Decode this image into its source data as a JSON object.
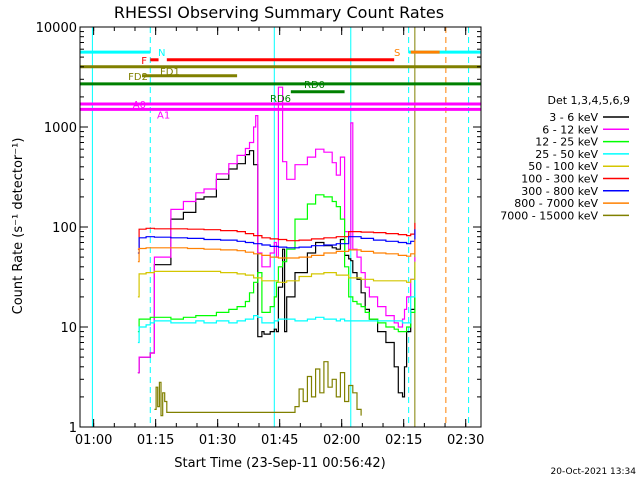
{
  "chart_data": {
    "type": "line",
    "title": "RHESSI Observing Summary Count Rates",
    "xlabel": "Start Time (23-Sep-11 00:56:42)",
    "ylabel": "Count Rate (s⁻¹ detector⁻¹)",
    "yscale": "log",
    "xunit": "minutes since 00:56:42",
    "xlim": [
      0,
      97
    ],
    "ylim": [
      1,
      10000
    ],
    "x_ticks": [
      {
        "at": 3.3,
        "label": "01:00"
      },
      {
        "at": 18.3,
        "label": "01:15"
      },
      {
        "at": 33.3,
        "label": "01:30"
      },
      {
        "at": 48.3,
        "label": "01:45"
      },
      {
        "at": 63.3,
        "label": "02:00"
      },
      {
        "at": 78.3,
        "label": "02:15"
      },
      {
        "at": 93.3,
        "label": "02:30"
      }
    ],
    "y_ticks": [
      {
        "at": 1,
        "label": "1"
      },
      {
        "at": 10,
        "label": "10"
      },
      {
        "at": 100,
        "label": "100"
      },
      {
        "at": 1000,
        "label": "1000"
      },
      {
        "at": 10000,
        "label": "10000"
      }
    ],
    "legend": {
      "title": "Det 1,3,4,5,6,9",
      "placement": "right"
    },
    "series": [
      {
        "name": "3 - 6 keV",
        "color": "#000000",
        "x": [
          14,
          14.3,
          16,
          17,
          18,
          22,
          25,
          28,
          30,
          33,
          36,
          38,
          40,
          41,
          42,
          43,
          44,
          44.5,
          45,
          46,
          47,
          47.5,
          48,
          49,
          49.5,
          50,
          52,
          55,
          57,
          59,
          61,
          62,
          63,
          64,
          65,
          65.5,
          66,
          67,
          68,
          69,
          70,
          72,
          74,
          76,
          77,
          78,
          78.5,
          79,
          80,
          81
        ],
        "y": [
          3.5,
          5,
          5,
          5.5,
          42,
          120,
          140,
          190,
          200,
          300,
          380,
          430,
          530,
          580,
          420,
          8,
          9,
          8.5,
          8.5,
          9,
          9.5,
          9,
          25,
          60,
          9,
          20,
          35,
          55,
          70,
          65,
          62,
          60,
          75,
          52,
          48,
          46,
          35,
          30,
          22,
          15,
          12,
          9,
          7,
          4,
          2.2,
          2,
          4,
          9,
          15,
          30
        ]
      },
      {
        "name": "6 - 12 keV",
        "color": "#ff00ff",
        "x": [
          14,
          14.3,
          16,
          17,
          18,
          22,
          25,
          28,
          30,
          33,
          36,
          38,
          40,
          41,
          42,
          42.5,
          43,
          44,
          46,
          47,
          47.5,
          48,
          49,
          50,
          52,
          55,
          57,
          59,
          61,
          62,
          63,
          64,
          65,
          65.5,
          66,
          67,
          68,
          69,
          70,
          72,
          74,
          76,
          77,
          78,
          78.5,
          79,
          80,
          81
        ],
        "y": [
          3.5,
          5,
          5,
          5.5,
          50,
          150,
          180,
          220,
          240,
          340,
          430,
          520,
          610,
          700,
          1000,
          1300,
          55,
          40,
          55,
          70,
          50,
          2500,
          450,
          300,
          420,
          500,
          600,
          560,
          440,
          330,
          500,
          90,
          60,
          1100,
          60,
          50,
          35,
          25,
          20,
          16,
          13,
          11,
          10,
          12,
          15,
          20,
          30,
          50
        ]
      },
      {
        "name": "12 - 25 keV",
        "color": "#00ff00",
        "x": [
          14,
          14.3,
          16,
          17,
          18,
          22,
          25,
          28,
          30,
          33,
          36,
          38,
          40,
          41,
          42,
          43,
          44,
          46,
          47,
          47.5,
          48,
          49,
          50,
          52,
          55,
          57,
          59,
          61,
          62,
          63,
          64,
          65,
          66,
          67,
          68,
          69,
          70,
          72,
          74,
          76,
          77,
          78,
          78.5,
          79,
          80,
          81
        ],
        "y": [
          9,
          12,
          12,
          12.5,
          12.5,
          12,
          12.5,
          13,
          13,
          14,
          15,
          16,
          18,
          22,
          28,
          35,
          14,
          16,
          20,
          28,
          40,
          45,
          60,
          120,
          170,
          210,
          200,
          180,
          160,
          120,
          40,
          20,
          18,
          17,
          16,
          14,
          12,
          11,
          10,
          9.5,
          9,
          9,
          9,
          10,
          14,
          40
        ]
      },
      {
        "name": "25 - 50 keV",
        "color": "#00ffff",
        "x": [
          14,
          14.3,
          16,
          17,
          18,
          22,
          25,
          28,
          30,
          33,
          36,
          38,
          40,
          41,
          42,
          43,
          44,
          46,
          47,
          48,
          49,
          50,
          52,
          55,
          57,
          59,
          61,
          62,
          63,
          64,
          66,
          68,
          70,
          72,
          74,
          76,
          78,
          79,
          80,
          81
        ],
        "y": [
          7,
          10,
          10.5,
          11,
          11.5,
          11,
          11,
          11.5,
          11,
          11.5,
          11,
          11.5,
          12,
          12,
          13,
          12.5,
          11,
          11,
          11.5,
          12,
          12,
          12,
          11.5,
          12,
          12.5,
          12,
          12,
          11.5,
          12,
          11.5,
          11.5,
          11.5,
          11.5,
          11.5,
          11.5,
          11.5,
          11,
          11,
          20,
          45
        ]
      },
      {
        "name": "50 - 100 keV",
        "color": "#d4c600",
        "x": [
          14,
          14.3,
          16,
          18,
          22,
          26,
          30,
          34,
          38,
          40,
          42,
          44,
          46,
          48,
          50,
          53,
          56,
          59,
          62,
          65,
          68,
          71,
          74,
          77,
          79,
          80,
          81
        ],
        "y": [
          20,
          34,
          35,
          36,
          36,
          36,
          36,
          35,
          34,
          33,
          31,
          29,
          29,
          28,
          29,
          32,
          34,
          35,
          33,
          31,
          30,
          29,
          29,
          29,
          28,
          30,
          45
        ]
      },
      {
        "name": "100 - 300 keV",
        "color": "#ff0000",
        "x": [
          14,
          14.3,
          16,
          18,
          22,
          26,
          30,
          34,
          38,
          40,
          42,
          44,
          46,
          48,
          50,
          53,
          56,
          59,
          62,
          65,
          68,
          71,
          74,
          77,
          79,
          80,
          81
        ],
        "y": [
          60,
          95,
          97,
          96,
          96,
          95,
          94,
          92,
          90,
          86,
          82,
          78,
          76,
          75,
          73,
          74,
          76,
          78,
          80,
          90,
          89,
          88,
          86,
          84,
          82,
          85,
          110
        ]
      },
      {
        "name": "300 - 800 keV",
        "color": "#0000ff",
        "x": [
          14,
          14.3,
          16,
          18,
          22,
          26,
          30,
          34,
          38,
          40,
          42,
          44,
          46,
          48,
          50,
          53,
          56,
          59,
          62,
          65,
          68,
          71,
          74,
          77,
          79,
          80,
          81
        ],
        "y": [
          55,
          78,
          80,
          79,
          78,
          77,
          75,
          74,
          72,
          70,
          68,
          66,
          64,
          63,
          62,
          63,
          65,
          66,
          68,
          80,
          77,
          74,
          72,
          70,
          68,
          72,
          95
        ]
      },
      {
        "name": "800 - 7000 keV",
        "color": "#ff8000",
        "x": [
          14,
          14.3,
          16,
          18,
          22,
          26,
          30,
          34,
          38,
          40,
          42,
          44,
          46,
          48,
          50,
          53,
          56,
          59,
          62,
          65,
          68,
          71,
          74,
          77,
          79,
          80,
          81
        ],
        "y": [
          45,
          61,
          62,
          62,
          62,
          61,
          60,
          59,
          58,
          56,
          54,
          52,
          50,
          49,
          49,
          50,
          52,
          55,
          57,
          59,
          57,
          55,
          54,
          52,
          51,
          54,
          75
        ]
      },
      {
        "name": "7000 - 15000 keV",
        "color": "#808000",
        "x": [
          18,
          18.4,
          18.8,
          19.2,
          19.6,
          20,
          20.5,
          21,
          52,
          53,
          54,
          55,
          56,
          57,
          58,
          59,
          60,
          61,
          62,
          63,
          64,
          65,
          66,
          67,
          68
        ],
        "y": [
          1.5,
          2.5,
          1.6,
          2.8,
          1.3,
          2.2,
          1.8,
          1.4,
          1.6,
          2.4,
          1.8,
          3.2,
          2.0,
          3.8,
          2.2,
          4.5,
          2.5,
          3.0,
          2.0,
          3.5,
          1.8,
          2.6,
          2.2,
          1.5,
          1.3
        ]
      }
    ],
    "state_bars": [
      {
        "label": "N",
        "color": "#00ffff",
        "y": 5600,
        "segments": [
          [
            0,
            17
          ],
          [
            79.5,
            97
          ]
        ]
      },
      {
        "label": "S",
        "color": "#ff8000",
        "y": 5600,
        "segments": [
          [
            80,
            87
          ]
        ]
      },
      {
        "label": "F",
        "color": "#ff0000",
        "y": 4700,
        "segments": [
          [
            17,
            19
          ],
          [
            21,
            76
          ]
        ]
      },
      {
        "label": "FD1",
        "color": "#808000",
        "y": 4000,
        "segments": [
          [
            0,
            97
          ]
        ]
      },
      {
        "label": "FD2",
        "color": "#808000",
        "y": 3250,
        "segments": [
          [
            15,
            38
          ]
        ]
      },
      {
        "label": "RD0",
        "color": "#008000",
        "y": 2700,
        "segments": [
          [
            0,
            97
          ]
        ]
      },
      {
        "label": "RD6",
        "color": "#008000",
        "y": 2250,
        "segments": [
          [
            51,
            64
          ]
        ]
      },
      {
        "label": "A0",
        "color": "#ff00ff",
        "y": 1700,
        "segments": [
          [
            0,
            97
          ]
        ]
      },
      {
        "label": "A1",
        "color": "#ff00ff",
        "y": 1500,
        "segments": [
          [
            0,
            97
          ]
        ]
      }
    ],
    "vertical_markers": [
      {
        "color": "#00ffff",
        "style": "dash",
        "x": 17
      },
      {
        "color": "#00ffff",
        "style": "dash",
        "x": 79.5
      },
      {
        "color": "#00ffff",
        "style": "dash",
        "x": 94
      },
      {
        "color": "#ff8000",
        "style": "dash",
        "x": 88.5
      },
      {
        "color": "#808000",
        "style": "solid",
        "x": 81
      },
      {
        "color": "#00ffff",
        "style": "solid",
        "x": 3
      },
      {
        "color": "#00ffff",
        "style": "solid",
        "x": 47
      },
      {
        "color": "#00ffff",
        "style": "solid",
        "x": 65.5
      }
    ],
    "timestamp": "20-Oct-2021 13:34"
  }
}
